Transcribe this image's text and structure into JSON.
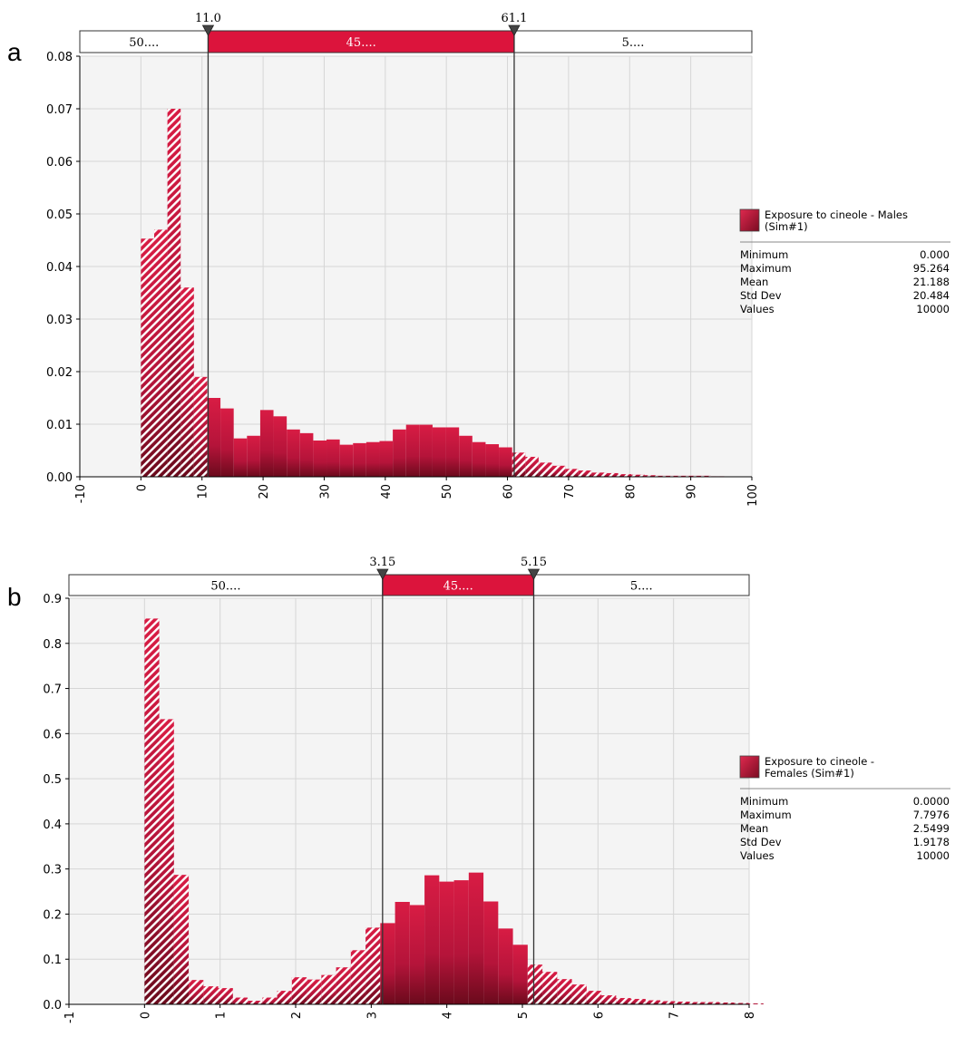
{
  "colors": {
    "bar_top": "#d81c44",
    "bar_bottom": "#6a0a1c",
    "hatch_light": "#ffffff",
    "band_highlight": "#dc143c",
    "plot_bg": "#f4f4f4",
    "grid": "#d6d6d6"
  },
  "chart_data": [
    {
      "type": "bar",
      "panel_label": "a",
      "title": "",
      "xlabel": "",
      "ylabel": "",
      "xlim": [
        -10,
        100
      ],
      "ylim": [
        0,
        0.08
      ],
      "x_ticks": [
        "-10",
        "0",
        "10",
        "20",
        "30",
        "40",
        "50",
        "60",
        "70",
        "80",
        "90",
        "100"
      ],
      "y_ticks": [
        "0.00",
        "0.01",
        "0.02",
        "0.03",
        "0.04",
        "0.05",
        "0.06",
        "0.07",
        "0.08"
      ],
      "bin_start": 0,
      "bin_width": 2.17,
      "values": [
        0.0453,
        0.047,
        0.07,
        0.036,
        0.019,
        0.015,
        0.013,
        0.0073,
        0.0078,
        0.0127,
        0.0115,
        0.009,
        0.0083,
        0.0069,
        0.0071,
        0.0061,
        0.0064,
        0.0066,
        0.0068,
        0.009,
        0.0099,
        0.0099,
        0.0094,
        0.0094,
        0.0078,
        0.0066,
        0.0062,
        0.0056,
        0.0046,
        0.0038,
        0.0027,
        0.0021,
        0.0015,
        0.0012,
        0.0008,
        0.0007,
        0.0005,
        0.0004,
        0.0003,
        0.0002,
        0.0002,
        0.0002,
        0.0002,
        0.0001
      ],
      "markers": [
        "11.0",
        "61.1"
      ],
      "marker_values": [
        11.0,
        61.1
      ],
      "bands": [
        "50....",
        "45....",
        "5...."
      ],
      "legend": {
        "title_lines": [
          "Exposure to cineole - Males",
          "(Sim#1)"
        ],
        "stats": [
          {
            "label": "Minimum",
            "value": "0.000"
          },
          {
            "label": "Maximum",
            "value": "95.264"
          },
          {
            "label": "Mean",
            "value": "21.188"
          },
          {
            "label": "Std Dev",
            "value": "20.484"
          },
          {
            "label": "Values",
            "value": "10000"
          }
        ]
      }
    },
    {
      "type": "bar",
      "panel_label": "b",
      "title": "",
      "xlabel": "",
      "ylabel": "",
      "xlim": [
        -1,
        8
      ],
      "ylim": [
        0,
        0.9
      ],
      "x_ticks": [
        "-1",
        "0",
        "1",
        "2",
        "3",
        "4",
        "5",
        "6",
        "7",
        "8"
      ],
      "y_ticks": [
        "0.0",
        "0.1",
        "0.2",
        "0.3",
        "0.4",
        "0.5",
        "0.6",
        "0.7",
        "0.8",
        "0.9"
      ],
      "bin_start": 0,
      "bin_width": 0.195,
      "values": [
        0.855,
        0.632,
        0.287,
        0.054,
        0.04,
        0.036,
        0.015,
        0.008,
        0.015,
        0.03,
        0.06,
        0.055,
        0.065,
        0.082,
        0.12,
        0.17,
        0.18,
        0.227,
        0.22,
        0.286,
        0.272,
        0.275,
        0.292,
        0.228,
        0.168,
        0.132,
        0.088,
        0.072,
        0.056,
        0.044,
        0.03,
        0.02,
        0.014,
        0.012,
        0.009,
        0.007,
        0.006,
        0.005,
        0.005,
        0.004,
        0.003,
        0.002
      ],
      "markers": [
        "3.15",
        "5.15"
      ],
      "marker_values": [
        3.15,
        5.15
      ],
      "bands": [
        "50....",
        "45....",
        "5...."
      ],
      "legend": {
        "title_lines": [
          "Exposure to cineole -",
          "Females (Sim#1)"
        ],
        "stats": [
          {
            "label": "Minimum",
            "value": "0.0000"
          },
          {
            "label": "Maximum",
            "value": "7.7976"
          },
          {
            "label": "Mean",
            "value": "2.5499"
          },
          {
            "label": "Std Dev",
            "value": "1.9178"
          },
          {
            "label": "Values",
            "value": "10000"
          }
        ]
      }
    }
  ]
}
